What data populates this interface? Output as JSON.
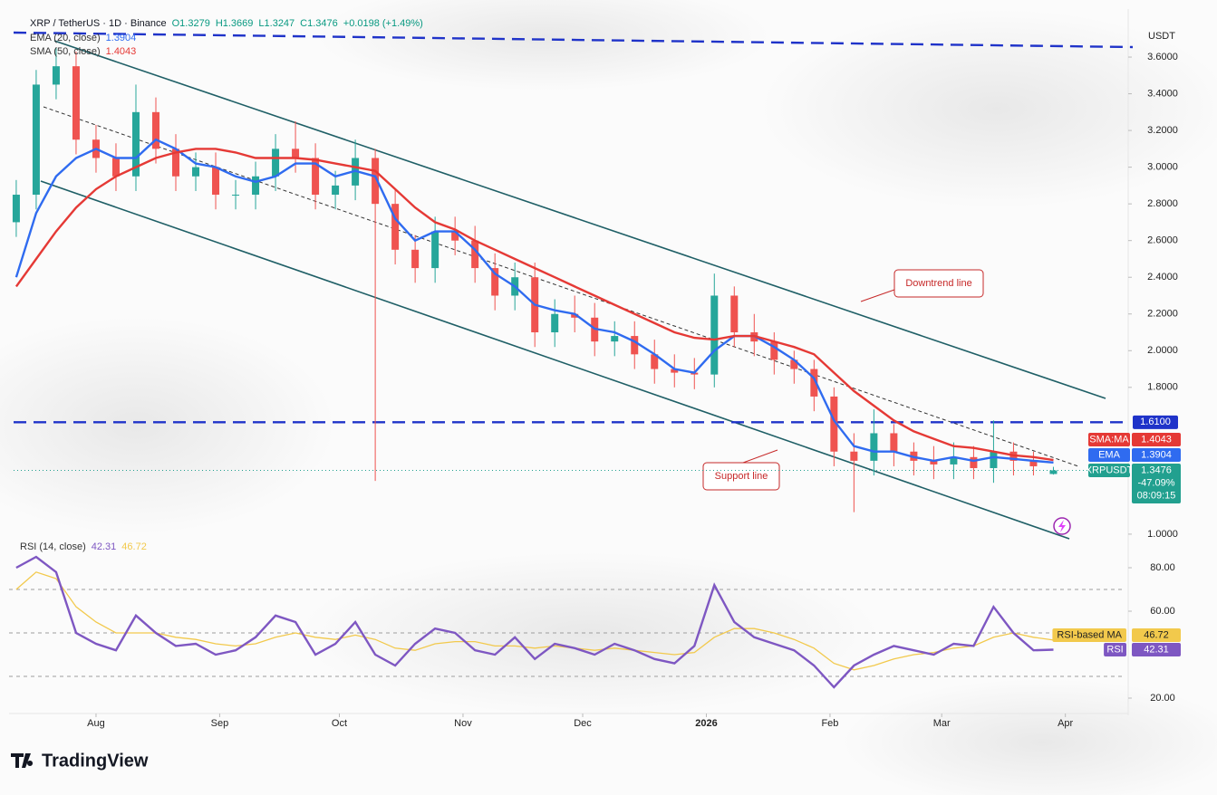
{
  "chart_data": [
    {
      "type": "candlestick",
      "title": "XRP / TetherUS · 1D · Binance",
      "quote": [
        "O1.3279",
        "H1.3669",
        "L1.3247",
        "C1.3476",
        "+0.0198 (+1.49%)"
      ],
      "unit": "USDT",
      "open": [
        2.7,
        2.85,
        3.45,
        3.55,
        3.15,
        3.05,
        2.95,
        3.3,
        3.1,
        2.95,
        3.0,
        2.85,
        2.85,
        2.95,
        3.1,
        3.05,
        2.85,
        2.9,
        3.05,
        2.8,
        2.55,
        2.45,
        2.65,
        2.6,
        2.45,
        2.3,
        2.4,
        2.1,
        2.2,
        2.18,
        2.05,
        2.08,
        1.98,
        1.9,
        1.88,
        1.87,
        2.3,
        2.1,
        2.05,
        1.95,
        1.9,
        1.75,
        1.45,
        1.4,
        1.55,
        1.45,
        1.4,
        1.38,
        1.42,
        1.36,
        1.45,
        1.4,
        1.3279
      ],
      "high": [
        2.93,
        3.53,
        3.65,
        3.63,
        3.23,
        3.13,
        3.45,
        3.38,
        3.18,
        3.08,
        3.08,
        2.93,
        3.03,
        3.18,
        3.25,
        3.13,
        2.98,
        3.15,
        3.1,
        2.88,
        2.63,
        2.73,
        2.73,
        2.68,
        2.53,
        2.48,
        2.48,
        2.28,
        2.3,
        2.26,
        2.16,
        2.16,
        2.06,
        1.98,
        1.96,
        2.42,
        2.35,
        2.2,
        2.1,
        2.0,
        1.95,
        1.8,
        1.55,
        1.68,
        1.6,
        1.5,
        1.48,
        1.5,
        1.48,
        1.62,
        1.5,
        1.45,
        1.3669
      ],
      "low": [
        2.62,
        2.77,
        3.37,
        3.07,
        2.97,
        2.87,
        2.87,
        3.02,
        2.87,
        2.87,
        2.77,
        2.77,
        2.77,
        2.87,
        2.97,
        2.77,
        2.77,
        2.82,
        1.29,
        2.47,
        2.37,
        2.37,
        2.52,
        2.37,
        2.22,
        2.22,
        2.02,
        2.02,
        2.1,
        1.97,
        1.97,
        1.9,
        1.82,
        1.8,
        1.79,
        1.8,
        2.02,
        1.97,
        1.87,
        1.82,
        1.67,
        1.37,
        1.12,
        1.32,
        1.37,
        1.32,
        1.3,
        1.3,
        1.3,
        1.28,
        1.32,
        1.32,
        1.3247
      ],
      "close": [
        2.85,
        3.45,
        3.55,
        3.15,
        3.05,
        2.95,
        3.3,
        3.1,
        2.95,
        3.0,
        2.85,
        2.85,
        2.95,
        3.1,
        3.05,
        2.85,
        2.9,
        3.05,
        2.8,
        2.55,
        2.45,
        2.65,
        2.6,
        2.45,
        2.3,
        2.4,
        2.1,
        2.2,
        2.18,
        2.05,
        2.08,
        1.98,
        1.9,
        1.88,
        1.87,
        2.3,
        2.1,
        2.05,
        1.95,
        1.9,
        1.75,
        1.45,
        1.4,
        1.55,
        1.45,
        1.4,
        1.38,
        1.42,
        1.36,
        1.45,
        1.4,
        1.37,
        1.3476
      ],
      "up_color": "#26a69a",
      "down_color": "#ef5350",
      "symbol": "XRPUSDT",
      "symbol_color": "#22a08f",
      "close_tag_lines": [
        "-47.09%",
        "08:09:15"
      ],
      "series": [
        {
          "name": "EMA (20, close)",
          "tag": "EMA",
          "color": "#2f6bf0",
          "values": [
            2.4,
            2.75,
            2.95,
            3.05,
            3.1,
            3.05,
            3.05,
            3.15,
            3.1,
            3.02,
            3.0,
            2.95,
            2.92,
            2.95,
            3.02,
            3.02,
            2.95,
            2.98,
            2.95,
            2.72,
            2.6,
            2.65,
            2.65,
            2.55,
            2.42,
            2.35,
            2.25,
            2.22,
            2.2,
            2.12,
            2.1,
            2.05,
            1.98,
            1.9,
            1.88,
            2.0,
            2.08,
            2.08,
            2.02,
            1.95,
            1.85,
            1.62,
            1.48,
            1.45,
            1.45,
            1.42,
            1.4,
            1.42,
            1.4,
            1.42,
            1.41,
            1.4,
            1.3904
          ]
        },
        {
          "name": "SMA (50, close)",
          "tag": "SMA:MA",
          "color": "#e53935",
          "values": [
            2.35,
            2.5,
            2.65,
            2.78,
            2.88,
            2.95,
            3.0,
            3.05,
            3.08,
            3.1,
            3.1,
            3.08,
            3.05,
            3.05,
            3.05,
            3.04,
            3.02,
            3.0,
            2.98,
            2.88,
            2.78,
            2.7,
            2.66,
            2.6,
            2.55,
            2.5,
            2.45,
            2.4,
            2.35,
            2.3,
            2.25,
            2.2,
            2.15,
            2.1,
            2.07,
            2.06,
            2.08,
            2.08,
            2.05,
            2.02,
            1.98,
            1.88,
            1.78,
            1.7,
            1.62,
            1.56,
            1.52,
            1.48,
            1.47,
            1.45,
            1.43,
            1.42,
            1.4043
          ]
        }
      ],
      "levels": [
        {
          "value": 1.61,
          "label": "1.6100",
          "color": "#1f33c9"
        }
      ],
      "annotations": [
        "Downtrend line",
        "Support line"
      ],
      "xlim": [
        -0.36,
        55.75
      ],
      "xticks": [
        {
          "value": 4,
          "label": "Aug"
        },
        {
          "value": 10.2,
          "label": "Sep"
        },
        {
          "value": 16.2,
          "label": "Oct"
        },
        {
          "value": 22.4,
          "label": "Nov"
        },
        {
          "value": 28.4,
          "label": "Dec"
        },
        {
          "value": 34.6,
          "label": "2026"
        },
        {
          "value": 40.8,
          "label": "Feb"
        },
        {
          "value": 46.4,
          "label": "Mar"
        },
        {
          "value": 52.6,
          "label": "Apr"
        }
      ],
      "ylim": [
        0.975,
        3.763
      ],
      "yticks": [
        {
          "value": 1,
          "label": "1.0000"
        },
        {
          "value": 1.8,
          "label": "1.8000"
        },
        {
          "value": 2,
          "label": "2.0000"
        },
        {
          "value": 2.2,
          "label": "2.2000"
        },
        {
          "value": 2.4,
          "label": "2.4000"
        },
        {
          "value": 2.6,
          "label": "2.6000"
        },
        {
          "value": 2.8,
          "label": "2.8000"
        },
        {
          "value": 3,
          "label": "3.0000"
        },
        {
          "value": 3.2,
          "label": "3.2000"
        },
        {
          "value": 3.4,
          "label": "3.4000"
        },
        {
          "value": 3.6,
          "label": "3.6000"
        }
      ],
      "logo": "TradingView"
    },
    {
      "type": "line",
      "title": "RSI (14, close)",
      "series": [
        {
          "name": "RSI",
          "color": "#7e57c2",
          "values": [
            80,
            85,
            78,
            50,
            45,
            42,
            58,
            50,
            44,
            45,
            40,
            42,
            48,
            58,
            55,
            40,
            45,
            55,
            40,
            35,
            45,
            52,
            50,
            42,
            40,
            48,
            38,
            45,
            43,
            40,
            45,
            42,
            38,
            36,
            44,
            72,
            55,
            48,
            45,
            42,
            35,
            25,
            35,
            40,
            44,
            42,
            40,
            45,
            44,
            62,
            50,
            42,
            42.31
          ]
        },
        {
          "name": "RSI-based MA",
          "color": "#f2c94c",
          "values": [
            70,
            78,
            75,
            62,
            55,
            50,
            50,
            50,
            48,
            47,
            45,
            44,
            45,
            48,
            50,
            48,
            47,
            49,
            47,
            43,
            42,
            45,
            46,
            46,
            44,
            44,
            43,
            44,
            43,
            42,
            43,
            42,
            41,
            40,
            41,
            48,
            52,
            52,
            50,
            47,
            43,
            36,
            33,
            35,
            38,
            40,
            41,
            43,
            44,
            48,
            50,
            48,
            46.72
          ]
        }
      ],
      "bands": [
        30,
        50,
        70
      ],
      "xlim": [
        -0.36,
        55.75
      ],
      "ylim": [
        14.17,
        91.25
      ],
      "yticks": [
        {
          "value": 20,
          "label": "20.00"
        },
        {
          "value": 60,
          "label": "60.00"
        },
        {
          "value": 80,
          "label": "80.00"
        }
      ]
    }
  ]
}
